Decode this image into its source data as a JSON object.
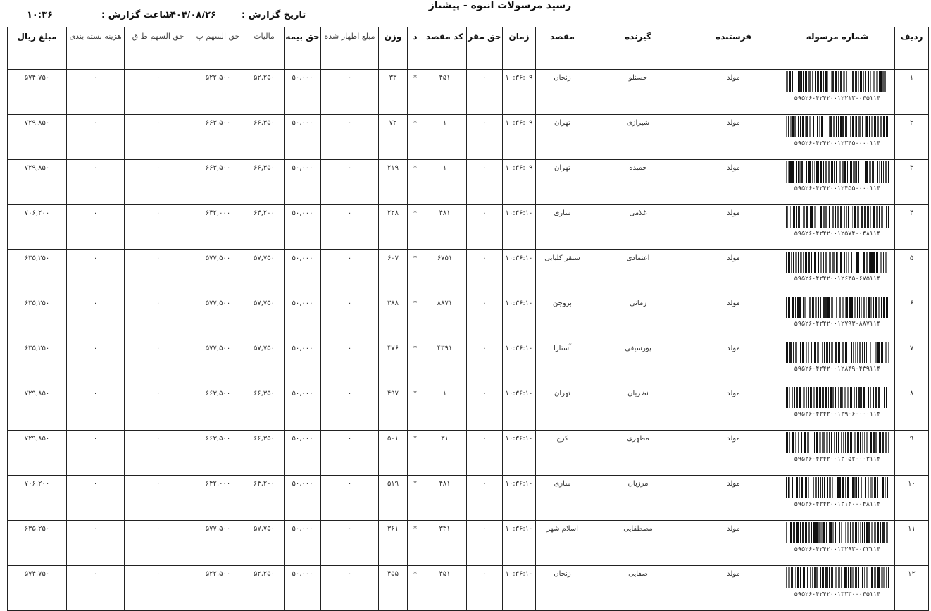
{
  "title": "رسید مرسولات انبوه - پیشتاز",
  "report": {
    "date_label": "تاریخ گزارش :",
    "date_value": "۱۴۰۴/۰۸/۲۶",
    "time_label": "ساعت گزارش :",
    "time_value": "۱۰:۳۶"
  },
  "columns": [
    "ردیف",
    "شماره مرسوله",
    "فرستنده",
    "گیرنده",
    "مقصد",
    "زمان",
    "حق مقر",
    "کد مقصد",
    "د",
    "وزن",
    "مبلغ اظهار شده",
    "حق بیمه",
    "مالیات",
    "حق السهم پ",
    "حق السهم ط ق",
    "هزینه بسته بندی",
    "مبلغ ریال"
  ],
  "rows": [
    {
      "n": "۱",
      "code": "۵۹۵۲۶۰۴۲۴۲۰۰۱۲۲۱۳۰۰۴۵۱۱۴",
      "sender": "مولد",
      "receiver": "حسنلو",
      "dest": "زنجان",
      "time": "۱۰:۳۶:۰۹",
      "maqar": "۰",
      "destcode": "۴۵۱",
      "d": "*",
      "weight": "۳۳",
      "declared": "۰",
      "insurance": "۵۰,۰۰۰",
      "tax": "۵۲,۲۵۰",
      "share_p": "۵۲۲,۵۰۰",
      "share_tq": "۰",
      "packing": "۰",
      "total": "۵۷۴,۷۵۰"
    },
    {
      "n": "۲",
      "code": "۵۹۵۲۶۰۴۲۴۲۰۰۱۲۳۴۵۰۰۰۰۱۱۴",
      "sender": "مولد",
      "receiver": "شیرازی",
      "dest": "تهران",
      "time": "۱۰:۳۶:۰۹",
      "maqar": "۰",
      "destcode": "۱",
      "d": "*",
      "weight": "۷۲",
      "declared": "۰",
      "insurance": "۵۰,۰۰۰",
      "tax": "۶۶,۳۵۰",
      "share_p": "۶۶۳,۵۰۰",
      "share_tq": "۰",
      "packing": "۰",
      "total": "۷۲۹,۸۵۰"
    },
    {
      "n": "۳",
      "code": "۵۹۵۲۶۰۴۲۴۲۰۰۱۲۴۵۵۰۰۰۰۱۱۴",
      "sender": "مولد",
      "receiver": "حمیده",
      "dest": "تهران",
      "time": "۱۰:۳۶:۰۹",
      "maqar": "۰",
      "destcode": "۱",
      "d": "*",
      "weight": "۲۱۹",
      "declared": "۰",
      "insurance": "۵۰,۰۰۰",
      "tax": "۶۶,۳۵۰",
      "share_p": "۶۶۳,۵۰۰",
      "share_tq": "۰",
      "packing": "۰",
      "total": "۷۲۹,۸۵۰"
    },
    {
      "n": "۴",
      "code": "۵۹۵۲۶۰۴۲۴۲۰۰۱۲۵۷۴۰۰۴۸۱۱۴",
      "sender": "مولد",
      "receiver": "غلامی",
      "dest": "ساری",
      "time": "۱۰:۳۶:۱۰",
      "maqar": "۰",
      "destcode": "۴۸۱",
      "d": "*",
      "weight": "۲۲۸",
      "declared": "۰",
      "insurance": "۵۰,۰۰۰",
      "tax": "۶۴,۲۰۰",
      "share_p": "۶۴۲,۰۰۰",
      "share_tq": "۰",
      "packing": "۰",
      "total": "۷۰۶,۲۰۰"
    },
    {
      "n": "۵",
      "code": "۵۹۵۲۶۰۴۲۴۲۰۰۱۲۶۳۵۰۶۷۵۱۱۴",
      "sender": "مولد",
      "receiver": "اعتمادی",
      "dest": "سنقر کلیایی",
      "time": "۱۰:۳۶:۱۰",
      "maqar": "۰",
      "destcode": "۶۷۵۱",
      "d": "*",
      "weight": "۶۰۷",
      "declared": "۰",
      "insurance": "۵۰,۰۰۰",
      "tax": "۵۷,۷۵۰",
      "share_p": "۵۷۷,۵۰۰",
      "share_tq": "۰",
      "packing": "۰",
      "total": "۶۳۵,۲۵۰"
    },
    {
      "n": "۶",
      "code": "۵۹۵۲۶۰۴۲۴۲۰۰۱۲۷۹۳۰۸۸۷۱۱۴",
      "sender": "مولد",
      "receiver": "زمانی",
      "dest": "بروجن",
      "time": "۱۰:۳۶:۱۰",
      "maqar": "۰",
      "destcode": "۸۸۷۱",
      "d": "*",
      "weight": "۳۸۸",
      "declared": "۰",
      "insurance": "۵۰,۰۰۰",
      "tax": "۵۷,۷۵۰",
      "share_p": "۵۷۷,۵۰۰",
      "share_tq": "۰",
      "packing": "۰",
      "total": "۶۳۵,۲۵۰"
    },
    {
      "n": "۷",
      "code": "۵۹۵۲۶۰۴۲۴۲۰۰۱۲۸۴۹۰۴۳۹۱۱۴",
      "sender": "مولد",
      "receiver": "پورسیفی",
      "dest": "آستارا",
      "time": "۱۰:۳۶:۱۰",
      "maqar": "۰",
      "destcode": "۴۳۹۱",
      "d": "*",
      "weight": "۴۷۶",
      "declared": "۰",
      "insurance": "۵۰,۰۰۰",
      "tax": "۵۷,۷۵۰",
      "share_p": "۵۷۷,۵۰۰",
      "share_tq": "۰",
      "packing": "۰",
      "total": "۶۳۵,۲۵۰"
    },
    {
      "n": "۸",
      "code": "۵۹۵۲۶۰۴۲۴۲۰۰۱۲۹۰۶۰۰۰۰۱۱۴",
      "sender": "مولد",
      "receiver": "نظریان",
      "dest": "تهران",
      "time": "۱۰:۳۶:۱۰",
      "maqar": "۰",
      "destcode": "۱",
      "d": "*",
      "weight": "۴۹۷",
      "declared": "۰",
      "insurance": "۵۰,۰۰۰",
      "tax": "۶۶,۳۵۰",
      "share_p": "۶۶۳,۵۰۰",
      "share_tq": "۰",
      "packing": "۰",
      "total": "۷۲۹,۸۵۰"
    },
    {
      "n": "۹",
      "code": "۵۹۵۲۶۰۴۲۴۲۰۰۱۳۰۵۲۰۰۰۳۱۱۴",
      "sender": "مولد",
      "receiver": "مطهری",
      "dest": "کرج",
      "time": "۱۰:۳۶:۱۰",
      "maqar": "۰",
      "destcode": "۳۱",
      "d": "*",
      "weight": "۵۰۱",
      "declared": "۰",
      "insurance": "۵۰,۰۰۰",
      "tax": "۶۶,۳۵۰",
      "share_p": "۶۶۳,۵۰۰",
      "share_tq": "۰",
      "packing": "۰",
      "total": "۷۲۹,۸۵۰"
    },
    {
      "n": "۱۰",
      "code": "۵۹۵۲۶۰۴۲۴۲۰۰۱۳۱۴۰۰۰۴۸۱۱۴",
      "sender": "مولد",
      "receiver": "مرزبان",
      "dest": "ساری",
      "time": "۱۰:۳۶:۱۰",
      "maqar": "۰",
      "destcode": "۴۸۱",
      "d": "*",
      "weight": "۵۱۹",
      "declared": "۰",
      "insurance": "۵۰,۰۰۰",
      "tax": "۶۴,۲۰۰",
      "share_p": "۶۴۲,۰۰۰",
      "share_tq": "۰",
      "packing": "۰",
      "total": "۷۰۶,۲۰۰"
    },
    {
      "n": "۱۱",
      "code": "۵۹۵۲۶۰۴۲۴۲۰۰۱۳۲۹۳۰۰۳۳۱۱۴",
      "sender": "مولد",
      "receiver": "مصطفایی",
      "dest": "اسلام شهر",
      "time": "۱۰:۳۶:۱۰",
      "maqar": "۰",
      "destcode": "۳۳۱",
      "d": "*",
      "weight": "۳۶۱",
      "declared": "۰",
      "insurance": "۵۰,۰۰۰",
      "tax": "۵۷,۷۵۰",
      "share_p": "۵۷۷,۵۰۰",
      "share_tq": "۰",
      "packing": "۰",
      "total": "۶۳۵,۲۵۰"
    },
    {
      "n": "۱۲",
      "code": "۵۹۵۲۶۰۴۲۴۲۰۰۱۳۳۳۰۰۰۴۵۱۱۴",
      "sender": "مولد",
      "receiver": "صفایی",
      "dest": "زنجان",
      "time": "۱۰:۳۶:۱۰",
      "maqar": "۰",
      "destcode": "۴۵۱",
      "d": "*",
      "weight": "۴۵۵",
      "declared": "۰",
      "insurance": "۵۰,۰۰۰",
      "tax": "۵۲,۲۵۰",
      "share_p": "۵۲۲,۵۰۰",
      "share_tq": "۰",
      "packing": "۰",
      "total": "۵۷۴,۷۵۰"
    }
  ]
}
